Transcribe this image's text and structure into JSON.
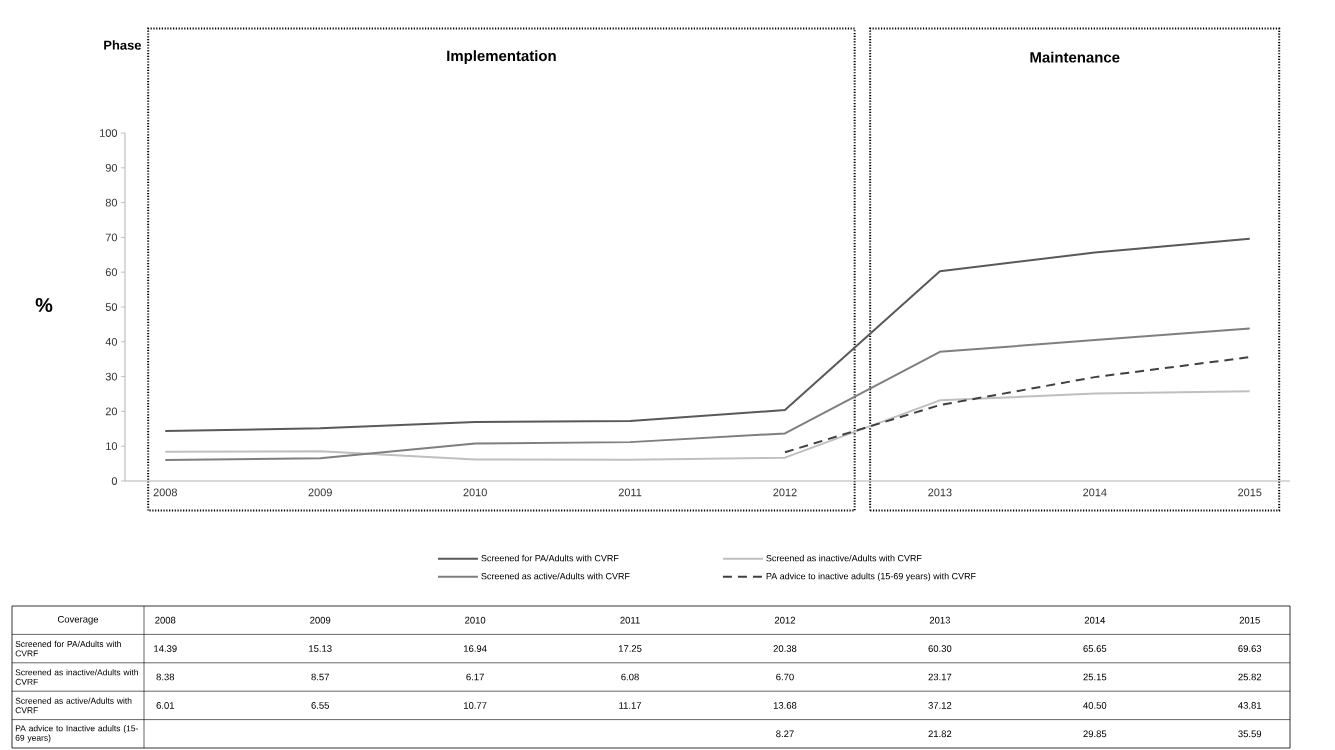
{
  "chart_data": {
    "type": "line",
    "ylabel": "%",
    "categories": [
      "2008",
      "2009",
      "2010",
      "2011",
      "2012",
      "2013",
      "2014",
      "2015"
    ],
    "series": [
      {
        "name": "Screened for PA/Adults with CVRF",
        "color": "#595959",
        "values": [
          14.39,
          15.13,
          16.94,
          17.25,
          20.38,
          60.3,
          65.65,
          69.63
        ],
        "value_labels": [
          "14.39",
          "15.13",
          "16.94",
          "17.25",
          "20.38",
          "60.30",
          "65.65",
          "69.63"
        ]
      },
      {
        "name": "Screened as inactive/Adults with CVRF",
        "color": "#bfbfbf",
        "values": [
          8.38,
          8.57,
          6.17,
          6.08,
          6.7,
          23.17,
          25.15,
          25.82
        ],
        "value_labels": [
          "8.38",
          "8.57",
          "6.17",
          "6.08",
          "6.70",
          "23.17",
          "25.15",
          "25.82"
        ]
      },
      {
        "name": "Screened as active/Adults with CVRF",
        "color": "#7f7f7f",
        "values": [
          6.01,
          6.55,
          10.77,
          11.17,
          13.68,
          37.12,
          40.5,
          43.81
        ],
        "value_labels": [
          "6.01",
          "6.55",
          "10.77",
          "11.17",
          "13.68",
          "37.12",
          "40.50",
          "43.81"
        ]
      },
      {
        "name": "PA advice to inactive adults (15-69 years) with CVRF",
        "color": "#404040",
        "line_style": "dashed",
        "values": [
          null,
          null,
          null,
          null,
          8.27,
          21.82,
          29.85,
          35.59
        ],
        "value_labels": [
          null,
          null,
          null,
          null,
          "8.27",
          "21.82",
          "29.85",
          "35.59"
        ]
      }
    ],
    "ylim": [
      0,
      100
    ],
    "yticks": [
      0,
      10,
      20,
      30,
      40,
      50,
      60,
      70,
      80,
      90,
      100
    ],
    "bands": [
      {
        "axis": "x",
        "from": "2008",
        "to": "2012",
        "label": "Implementation"
      },
      {
        "axis": "x",
        "from": "2013",
        "to": "2015",
        "label": "Maintenance"
      }
    ],
    "annotations": [
      "Phase",
      "Coverage",
      "PA advice to Inactive adults (15-69 years)"
    ],
    "legend": "bottom",
    "grid": false
  }
}
